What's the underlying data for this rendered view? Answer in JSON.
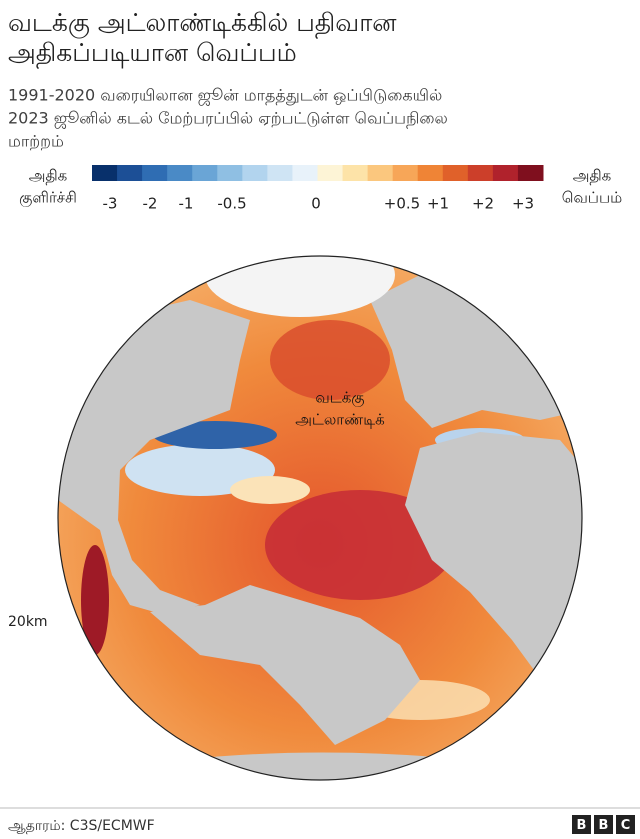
{
  "header": {
    "title_lines": [
      "வடக்கு அட்லாண்டிக்கில் பதிவான",
      "அதிகப்படியான வெப்பம்"
    ],
    "subtitle_lines": [
      "1991-2020 வரையிலான ஜூன் மாதத்துடன் ஒப்பிடுகையில்",
      "2023 ஜூனில் கடல் மேற்பரப்பில் ஏற்பட்டுள்ள வெப்பநிலை",
      "மாற்றம்"
    ]
  },
  "legend": {
    "left_label_lines": [
      "அதிக",
      "குளிர்ச்சி"
    ],
    "right_label_lines": [
      "அதிக",
      "வெப்பம்"
    ],
    "colors": [
      "#08306b",
      "#1c4f96",
      "#2f6db3",
      "#4a8ac6",
      "#6aa5d6",
      "#8fbfe3",
      "#b2d4ee",
      "#cfe4f4",
      "#e8f2fa",
      "#fdf4d6",
      "#fde3a8",
      "#fbc77e",
      "#f7a658",
      "#ef8436",
      "#e0612a",
      "#cc3f2a",
      "#b0222c",
      "#7f0f1e"
    ],
    "ticks": [
      -3,
      -2,
      -1,
      -0.5,
      0,
      {
        "value": 0.5,
        "label": "+0.5"
      },
      {
        "value": 1,
        "label": "+1"
      },
      {
        "value": 2,
        "label": "+2"
      },
      {
        "value": 3,
        "label": "+3"
      }
    ]
  },
  "map": {
    "region_label_lines": [
      "வடக்கு",
      "அட்லாண்டிக்"
    ],
    "scale_label": "20km"
  },
  "footer": {
    "source": "ஆதாரம்: C3S/ECMWF",
    "logo": "BBC"
  }
}
